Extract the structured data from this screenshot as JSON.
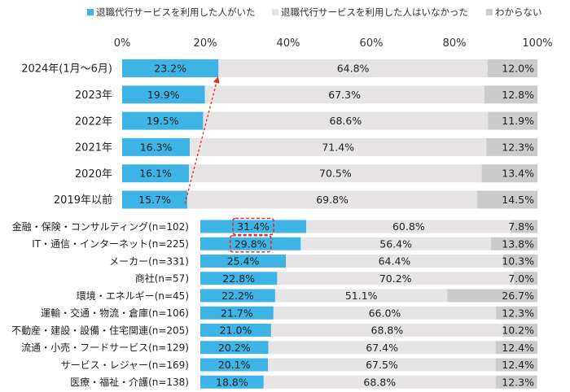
{
  "chart_data": [
    {
      "type": "bar",
      "orientation": "horizontal",
      "stacked": true,
      "legend_position": "top",
      "series": [
        {
          "name": "退職代行サービスを利用した人がいた",
          "color": "#3eb3e6",
          "label_color": "#222222"
        },
        {
          "name": "退職代行サービスを利用した人はいなかった",
          "color": "#e6e4e5",
          "label_color": "#222222"
        },
        {
          "name": "わからない",
          "color": "#cbcbcb",
          "label_color": "#222222"
        }
      ],
      "x_ticks": [
        "0%",
        "20%",
        "40%",
        "60%",
        "80%",
        "100%"
      ],
      "xlim": [
        0,
        100
      ],
      "categories": [
        "2024年(1月～6月)",
        "2023年",
        "2022年",
        "2021年",
        "2020年",
        "2019年以前"
      ],
      "values": [
        [
          23.2,
          64.8,
          12.0
        ],
        [
          19.9,
          67.3,
          12.8
        ],
        [
          19.5,
          68.6,
          11.9
        ],
        [
          16.3,
          71.4,
          12.3
        ],
        [
          16.1,
          70.5,
          13.4
        ],
        [
          15.7,
          69.8,
          14.5
        ]
      ],
      "value_labels": [
        [
          "23.2%",
          "64.8%",
          "12.0%"
        ],
        [
          "19.9%",
          "67.3%",
          "12.8%"
        ],
        [
          "19.5%",
          "68.6%",
          "11.9%"
        ],
        [
          "16.3%",
          "71.4%",
          "12.3%"
        ],
        [
          "16.1%",
          "70.5%",
          "13.4%"
        ],
        [
          "15.7%",
          "69.8%",
          "14.5%"
        ]
      ],
      "annotation": "dashed red arrow from 2019年以前 bar end up to 2024年(1月～6月) bar end"
    },
    {
      "type": "bar",
      "orientation": "horizontal",
      "stacked": true,
      "categories": [
        "金融・保険・コンサルティング(n=102)",
        "IT・通信・インターネット(n=225)",
        "メーカー(n=331)",
        "商社(n=57)",
        "環境・エネルギー(n=45)",
        "運輸・交通・物流・倉庫(n=106)",
        "不動産・建設・設備・住宅関連(n=205)",
        "流通・小売・フードサービス(n=129)",
        "サービス・レジャー(n=169)",
        "医療・福祉・介護(n=138)"
      ],
      "values": [
        [
          31.4,
          60.8,
          7.8
        ],
        [
          29.8,
          56.4,
          13.8
        ],
        [
          25.4,
          64.4,
          10.3
        ],
        [
          22.8,
          70.2,
          7.0
        ],
        [
          22.2,
          51.1,
          26.7
        ],
        [
          21.7,
          66.0,
          12.3
        ],
        [
          21.0,
          68.8,
          10.2
        ],
        [
          20.2,
          67.4,
          12.4
        ],
        [
          20.1,
          67.5,
          12.4
        ],
        [
          18.8,
          68.8,
          12.3
        ]
      ],
      "value_labels": [
        [
          "31.4%",
          "60.8%",
          "7.8%"
        ],
        [
          "29.8%",
          "56.4%",
          "13.8%"
        ],
        [
          "25.4%",
          "64.4%",
          "10.3%"
        ],
        [
          "22.8%",
          "70.2%",
          "7.0%"
        ],
        [
          "22.2%",
          "51.1%",
          "26.7%"
        ],
        [
          "21.7%",
          "66.0%",
          "12.3%"
        ],
        [
          "21.0%",
          "68.8%",
          "10.2%"
        ],
        [
          "20.2%",
          "67.4%",
          "12.4%"
        ],
        [
          "20.1%",
          "67.5%",
          "12.4%"
        ],
        [
          "18.8%",
          "68.8%",
          "12.3%"
        ]
      ],
      "highlighted_labels": [
        "31.4%",
        "29.8%"
      ],
      "highlight_color": "#e0302a"
    }
  ]
}
